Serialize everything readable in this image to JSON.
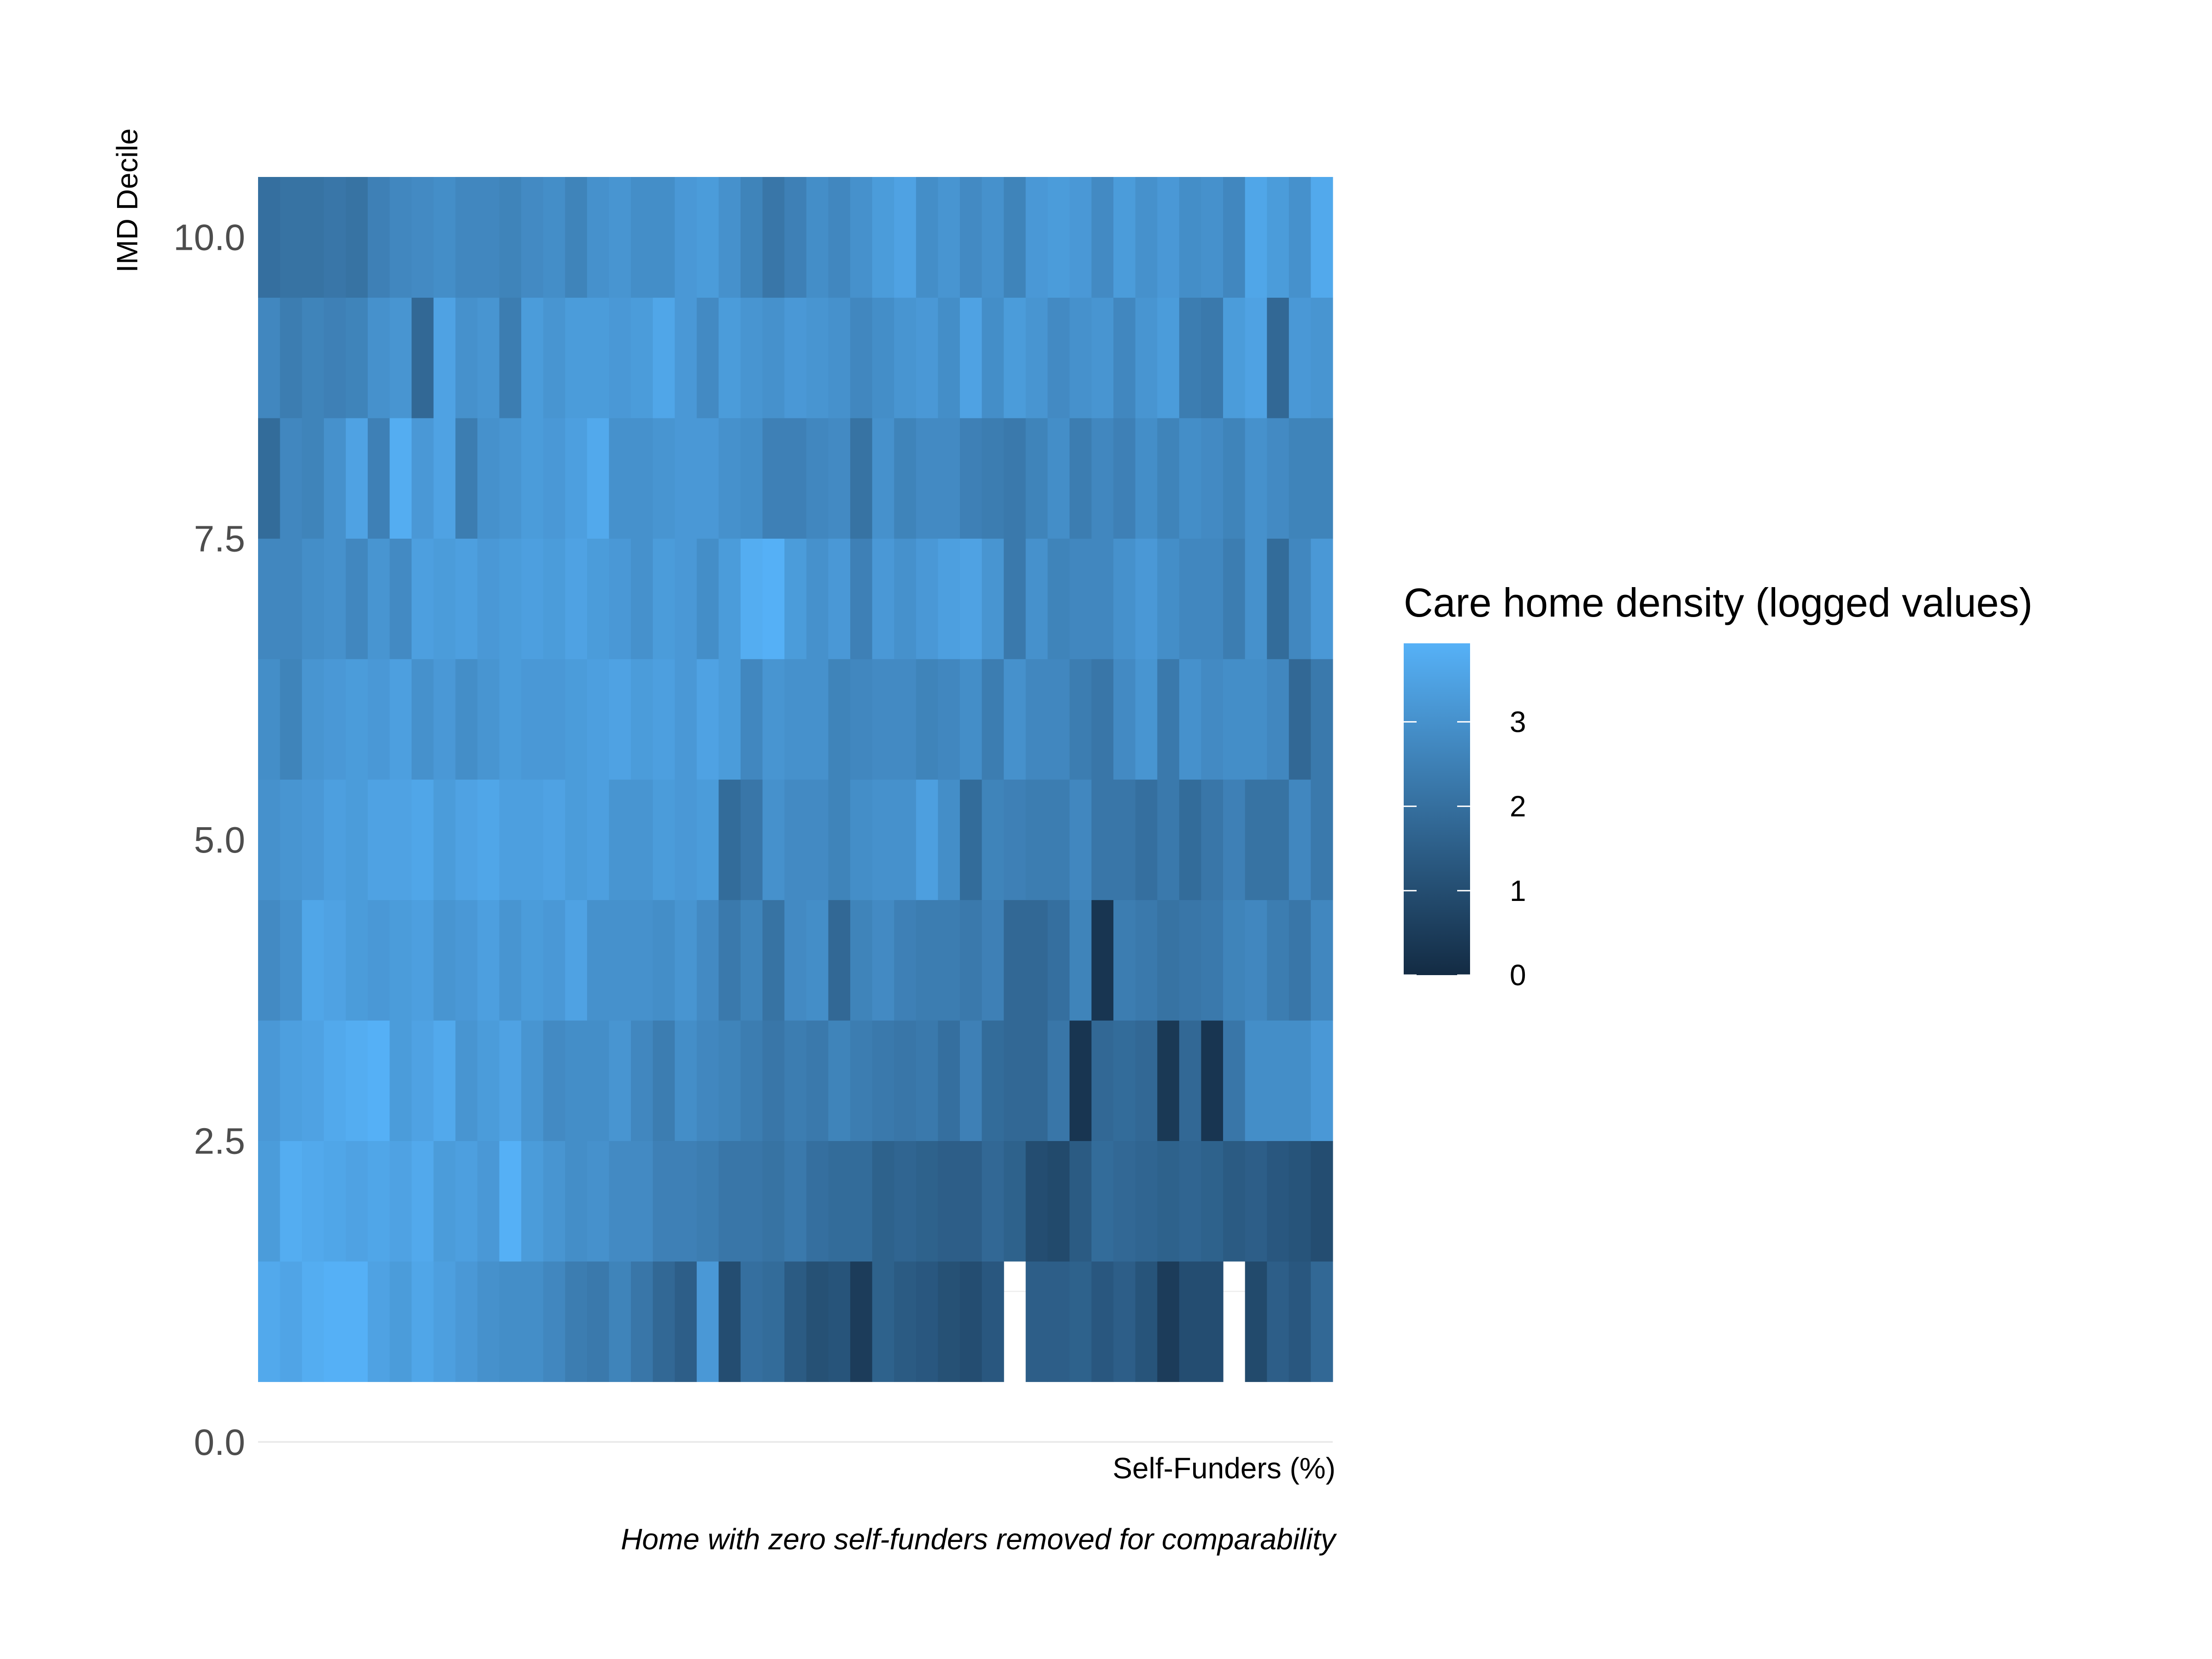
{
  "chart_data": {
    "type": "heatmap",
    "title": "",
    "xlabel": "Self-Funders (%)",
    "ylabel": "IMD Decile",
    "caption": "Home with zero self-funders removed for comparability",
    "y_ticks": [
      "0.0",
      "2.5",
      "5.0",
      "7.5",
      "10.0"
    ],
    "ylim": [
      0,
      10.5
    ],
    "x_count": 49,
    "y_deciles": [
      1,
      2,
      3,
      4,
      5,
      6,
      7,
      8,
      9,
      10
    ],
    "x_ticks_shown": false,
    "grid": true,
    "legend": {
      "title": "Care home density (logged values)",
      "position": "right",
      "ticks": [
        "0",
        "1",
        "2",
        "3"
      ],
      "min": 0,
      "max": 3.93,
      "low_color": "#132B43",
      "high_color": "#56B1F7"
    },
    "rows": [
      {
        "decile": 1,
        "values": [
          3.7,
          3.55,
          3.8,
          3.9,
          3.9,
          3.5,
          3.3,
          3.6,
          3.4,
          3.2,
          3.0,
          2.9,
          2.9,
          2.7,
          2.4,
          2.3,
          2.6,
          2.2,
          1.8,
          1.5,
          3.2,
          1.0,
          2.0,
          1.9,
          1.4,
          1.1,
          1.2,
          0.5,
          1.6,
          1.4,
          1.3,
          1.1,
          1.0,
          1.3,
          null,
          1.5,
          1.5,
          1.6,
          1.3,
          1.5,
          1.2,
          0.5,
          1.0,
          1.0,
          null,
          0.9,
          1.5,
          1.3,
          1.8
        ]
      },
      {
        "decile": 2,
        "values": [
          3.3,
          3.8,
          3.7,
          3.6,
          3.5,
          3.6,
          3.5,
          3.7,
          3.3,
          3.4,
          3.2,
          3.9,
          3.3,
          3.1,
          2.9,
          3.0,
          2.8,
          2.8,
          2.5,
          2.5,
          2.4,
          2.2,
          2.2,
          2.1,
          2.3,
          2.0,
          1.9,
          1.9,
          1.6,
          1.7,
          1.6,
          1.5,
          1.5,
          1.8,
          1.6,
          1.0,
          0.9,
          1.4,
          1.9,
          1.8,
          1.7,
          1.6,
          1.7,
          1.6,
          1.4,
          1.5,
          1.3,
          1.2,
          1.0
        ]
      },
      {
        "decile": 3,
        "values": [
          3.2,
          3.4,
          3.5,
          3.7,
          3.8,
          3.9,
          3.3,
          3.5,
          3.7,
          3.1,
          3.3,
          3.5,
          3.1,
          2.8,
          2.9,
          2.9,
          3.1,
          2.7,
          2.4,
          2.9,
          2.7,
          2.6,
          2.4,
          2.2,
          2.4,
          2.3,
          2.6,
          2.4,
          2.3,
          2.2,
          2.3,
          2.0,
          2.5,
          1.9,
          1.8,
          1.8,
          2.2,
          0.3,
          1.8,
          1.9,
          1.8,
          0.4,
          1.8,
          0.3,
          2.2,
          2.9,
          2.9,
          2.9,
          3.2
        ]
      },
      {
        "decile": 4,
        "values": [
          2.8,
          3.0,
          3.6,
          3.5,
          3.3,
          3.2,
          3.3,
          3.4,
          3.1,
          3.2,
          3.4,
          3.1,
          3.3,
          3.2,
          3.5,
          3.0,
          3.0,
          3.0,
          2.9,
          3.1,
          2.8,
          2.3,
          2.6,
          2.1,
          2.8,
          2.9,
          1.8,
          2.6,
          2.8,
          2.5,
          2.4,
          2.4,
          2.3,
          2.5,
          1.8,
          1.8,
          2.0,
          2.6,
          0.3,
          2.4,
          2.3,
          2.1,
          2.2,
          2.3,
          2.6,
          2.7,
          2.4,
          2.2,
          2.7
        ]
      },
      {
        "decile": 5,
        "values": [
          3.0,
          3.1,
          3.2,
          3.4,
          3.3,
          3.5,
          3.5,
          3.6,
          3.3,
          3.5,
          3.6,
          3.4,
          3.4,
          3.5,
          3.3,
          3.4,
          3.1,
          3.1,
          3.3,
          3.2,
          3.3,
          1.9,
          2.2,
          3.0,
          2.8,
          2.8,
          2.6,
          2.9,
          3.0,
          3.0,
          3.4,
          2.9,
          1.9,
          2.6,
          2.5,
          2.4,
          2.4,
          2.7,
          2.2,
          2.2,
          2.0,
          2.3,
          1.9,
          2.2,
          2.5,
          2.1,
          2.1,
          2.7,
          2.3
        ]
      },
      {
        "decile": 6,
        "values": [
          2.9,
          2.6,
          3.1,
          3.2,
          3.3,
          3.2,
          3.4,
          3.0,
          3.2,
          2.9,
          3.1,
          3.3,
          3.2,
          3.2,
          3.3,
          3.4,
          3.5,
          3.3,
          3.4,
          3.2,
          3.5,
          3.3,
          2.7,
          3.1,
          3.0,
          3.0,
          2.6,
          2.7,
          2.8,
          2.8,
          2.6,
          2.7,
          2.9,
          2.4,
          3.0,
          2.7,
          2.7,
          2.4,
          2.2,
          2.8,
          3.1,
          2.3,
          3.0,
          2.8,
          2.9,
          2.9,
          2.7,
          1.8,
          2.3
        ]
      },
      {
        "decile": 7,
        "values": [
          2.7,
          2.7,
          2.9,
          3.0,
          2.7,
          3.1,
          2.8,
          3.4,
          3.3,
          3.4,
          3.2,
          3.3,
          3.4,
          3.3,
          3.5,
          3.3,
          3.2,
          3.0,
          3.3,
          3.2,
          2.9,
          3.3,
          3.8,
          3.9,
          3.3,
          3.0,
          3.2,
          2.5,
          3.2,
          3.0,
          3.2,
          3.4,
          3.5,
          3.1,
          2.3,
          3.0,
          2.6,
          2.7,
          2.7,
          3.0,
          3.2,
          2.9,
          2.7,
          2.7,
          2.4,
          3.0,
          1.9,
          2.7,
          3.2
        ]
      },
      {
        "decile": 8,
        "values": [
          1.9,
          2.7,
          2.6,
          3.0,
          3.5,
          2.5,
          3.8,
          3.2,
          3.5,
          2.4,
          3.0,
          3.1,
          3.3,
          3.2,
          3.4,
          3.7,
          3.0,
          3.0,
          3.1,
          3.2,
          3.2,
          3.0,
          2.9,
          2.5,
          2.5,
          2.7,
          2.8,
          2.1,
          3.0,
          2.6,
          2.8,
          2.8,
          2.5,
          2.4,
          2.3,
          2.6,
          2.9,
          2.4,
          2.7,
          2.5,
          2.9,
          2.6,
          2.9,
          2.8,
          2.6,
          3.0,
          2.8,
          2.6,
          2.6
        ]
      },
      {
        "decile": 9,
        "values": [
          2.7,
          2.4,
          2.6,
          2.5,
          2.6,
          3.0,
          3.1,
          1.8,
          3.5,
          3.0,
          3.1,
          2.4,
          3.3,
          3.1,
          3.3,
          3.3,
          3.2,
          3.3,
          3.6,
          3.2,
          2.8,
          3.3,
          3.1,
          3.0,
          3.2,
          3.1,
          3.0,
          2.7,
          2.9,
          3.1,
          3.2,
          2.9,
          3.5,
          2.9,
          3.3,
          3.1,
          2.8,
          3.0,
          3.1,
          2.7,
          3.1,
          3.3,
          2.4,
          2.3,
          3.3,
          3.5,
          1.8,
          3.2,
          3.1
        ]
      },
      {
        "decile": 10,
        "values": [
          2.0,
          2.1,
          2.1,
          2.2,
          2.1,
          2.5,
          2.7,
          2.8,
          2.9,
          2.7,
          2.7,
          2.6,
          2.8,
          2.9,
          2.6,
          3.0,
          3.1,
          2.9,
          2.9,
          3.2,
          3.3,
          3.0,
          2.6,
          2.2,
          2.5,
          2.9,
          2.7,
          3.0,
          3.3,
          3.5,
          2.9,
          3.1,
          2.8,
          3.0,
          2.6,
          3.2,
          3.3,
          3.2,
          2.8,
          3.3,
          3.0,
          3.2,
          2.9,
          3.0,
          2.7,
          3.6,
          3.3,
          3.0,
          3.7
        ]
      }
    ]
  }
}
